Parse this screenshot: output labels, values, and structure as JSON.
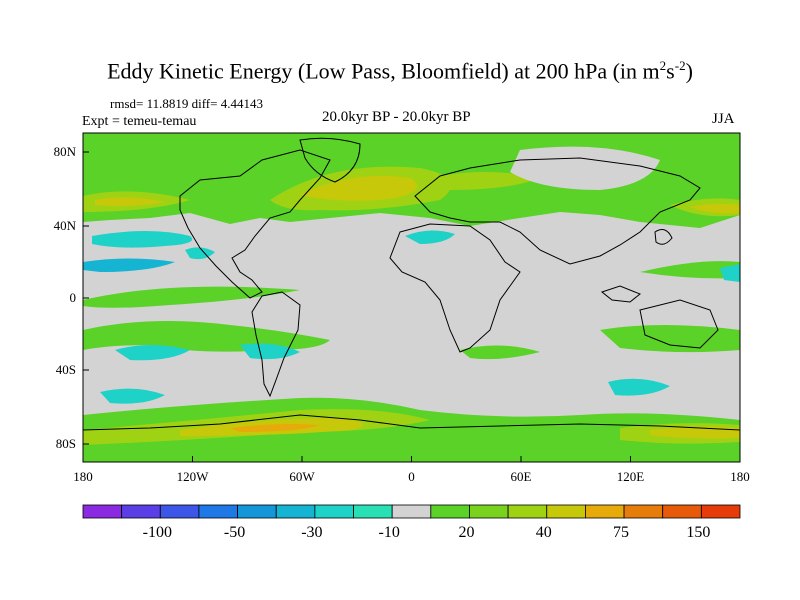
{
  "title_main": "Eddy Kinetic Energy (Low Pass, Bloomfield) at 200 hPa (in m",
  "title_sup1": "2",
  "title_s": "s",
  "title_sup2": "-2",
  "title_end": ")",
  "stats": "rmsd= 11.8819 diff= 4.44143",
  "experiment": "Expt = temeu-temau",
  "period": "20.0kyr BP - 20.0kyr BP",
  "season": "JJA",
  "map": {
    "lat_labels": [
      "80N",
      "40N",
      "0",
      "40S",
      "80S"
    ],
    "lon_labels": [
      "180",
      "120W",
      "60W",
      "0",
      "60E",
      "120E",
      "180"
    ],
    "background_color": "#d3d3d3"
  },
  "colorbar": {
    "colors": [
      "#8a2be2",
      "#5a3ee6",
      "#3c57e8",
      "#1e78e6",
      "#1496d8",
      "#14b4d2",
      "#1ed2c8",
      "#28e0b4",
      "#d3d3d3",
      "#5ad228",
      "#78d21e",
      "#a0d214",
      "#c8c80a",
      "#e6aa0a",
      "#e67d0a",
      "#e65a0a",
      "#e63c0a"
    ],
    "labels": [
      "-100",
      "-50",
      "-30",
      "-10",
      "20",
      "40",
      "75",
      "150"
    ]
  }
}
